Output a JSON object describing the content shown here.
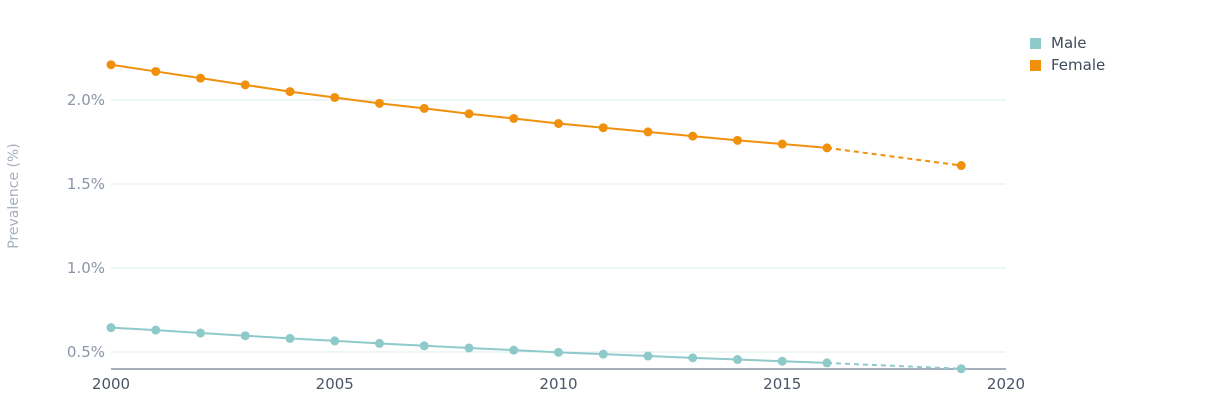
{
  "chart_data": {
    "type": "line",
    "ylabel": "Prevalence (%)",
    "xlabel": "",
    "xlim": [
      2000,
      2020
    ],
    "ylim": [
      0.4,
      2.4
    ],
    "x_ticks": [
      2000,
      2005,
      2010,
      2015,
      2020
    ],
    "y_ticks": [
      0.5,
      1.0,
      1.5,
      2.0
    ],
    "y_tick_labels": [
      "0.5%",
      "1.0%",
      "1.5%",
      "2.0%"
    ],
    "grid": "horizontal",
    "legend_position": "top-right",
    "series": [
      {
        "name": "Male",
        "color": "#8ecac9",
        "x": [
          2000,
          2001,
          2002,
          2003,
          2004,
          2005,
          2006,
          2007,
          2008,
          2009,
          2010,
          2011,
          2012,
          2013,
          2014,
          2015,
          2016
        ],
        "values": [
          0.645,
          0.63,
          0.613,
          0.597,
          0.581,
          0.566,
          0.551,
          0.537,
          0.524,
          0.511,
          0.498,
          0.487,
          0.476,
          0.465,
          0.455,
          0.445,
          0.435
        ],
        "projection": {
          "x": [
            2016,
            2019
          ],
          "values": [
            0.435,
            0.4
          ]
        }
      },
      {
        "name": "Female",
        "color": "#f0900d",
        "x": [
          2000,
          2001,
          2002,
          2003,
          2004,
          2005,
          2006,
          2007,
          2008,
          2009,
          2010,
          2011,
          2012,
          2013,
          2014,
          2015,
          2016
        ],
        "values": [
          2.21,
          2.17,
          2.13,
          2.09,
          2.05,
          2.015,
          1.98,
          1.95,
          1.918,
          1.89,
          1.86,
          1.835,
          1.81,
          1.785,
          1.76,
          1.738,
          1.715
        ],
        "projection": {
          "x": [
            2016,
            2019
          ],
          "values": [
            1.715,
            1.61
          ]
        }
      }
    ]
  }
}
